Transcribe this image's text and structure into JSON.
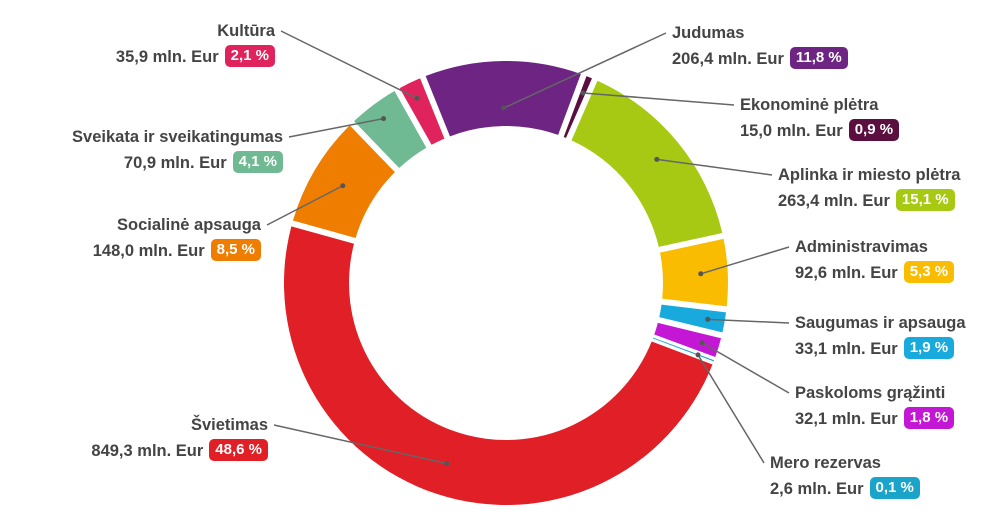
{
  "chart_data": {
    "type": "pie",
    "variant": "donut",
    "unit": "mln. Eur",
    "segments": [
      {
        "name": "Judumas",
        "value": 206.4,
        "value_label": "206,4 mln. Eur",
        "percent": 11.8,
        "percent_label": "11,8 %",
        "color": "#6d2483"
      },
      {
        "name": "Ekonominė plėtra",
        "value": 15.0,
        "value_label": "15,0 mln. Eur",
        "percent": 0.9,
        "percent_label": "0,9 %",
        "color": "#5a0f3f"
      },
      {
        "name": "Aplinka ir miesto plėtra",
        "value": 263.4,
        "value_label": "263,4 mln. Eur",
        "percent": 15.1,
        "percent_label": "15,1 %",
        "color": "#a8c914"
      },
      {
        "name": "Administravimas",
        "value": 92.6,
        "value_label": "92,6 mln. Eur",
        "percent": 5.3,
        "percent_label": "5,3 %",
        "color": "#f9bc00"
      },
      {
        "name": "Saugumas ir apsauga",
        "value": 33.1,
        "value_label": "33,1 mln. Eur",
        "percent": 1.9,
        "percent_label": "1,9 %",
        "color": "#18a9dd"
      },
      {
        "name": "Paskoloms grąžinti",
        "value": 32.1,
        "value_label": "32,1 mln. Eur",
        "percent": 1.8,
        "percent_label": "1,8 %",
        "color": "#c416d5"
      },
      {
        "name": "Mero rezervas",
        "value": 2.6,
        "value_label": "2,6 mln. Eur",
        "percent": 0.1,
        "percent_label": "0,1 %",
        "color": "#1ba4c9"
      },
      {
        "name": "Švietimas",
        "value": 849.3,
        "value_label": "849,3 mln. Eur",
        "percent": 48.6,
        "percent_label": "48,6 %",
        "color": "#e01f26"
      },
      {
        "name": "Socialinė apsauga",
        "value": 148.0,
        "value_label": "148,0 mln. Eur",
        "percent": 8.5,
        "percent_label": "8,5 %",
        "color": "#ef7d00"
      },
      {
        "name": "Sveikata ir sveikatingumas",
        "value": 70.9,
        "value_label": "70,9 mln. Eur",
        "percent": 4.1,
        "percent_label": "4,1 %",
        "color": "#6fba92"
      },
      {
        "name": "Kultūra",
        "value": 35.9,
        "value_label": "35,9 mln. Eur",
        "percent": 2.1,
        "percent_label": "2,1 %",
        "color": "#e0235c"
      }
    ]
  },
  "colors": {
    "text": "#444444",
    "leader": "#666666",
    "background": "#ffffff"
  }
}
